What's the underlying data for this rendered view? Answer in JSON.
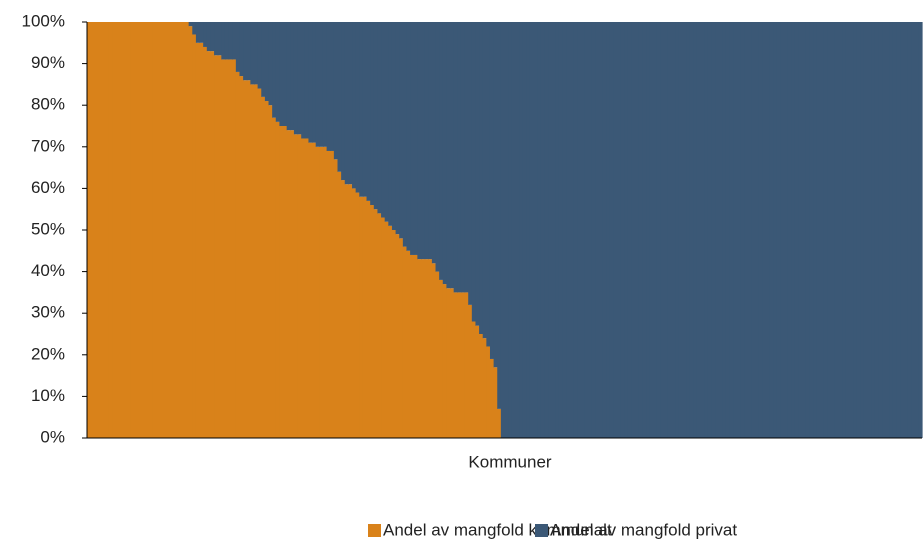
{
  "chart_data": {
    "type": "stacked_bar",
    "xlabel": "Kommuner",
    "categories": [
      null,
      null,
      null,
      null,
      null,
      null,
      null,
      null,
      null,
      null,
      null,
      null,
      null,
      null,
      null,
      null,
      null,
      null,
      null,
      null,
      null,
      null,
      null,
      null,
      null,
      null,
      null,
      null,
      null,
      null,
      null,
      null,
      null,
      null,
      null,
      null,
      null,
      null,
      null,
      null,
      null,
      null,
      null,
      null,
      null,
      null,
      null,
      null,
      null,
      null,
      null,
      null,
      null,
      null,
      null,
      null,
      null,
      null,
      null,
      null,
      null,
      null,
      null,
      null,
      null,
      null,
      null,
      null,
      null,
      null,
      null,
      null,
      null,
      null,
      null,
      null,
      null,
      null,
      null,
      null,
      null,
      null,
      null,
      null,
      null,
      null,
      null,
      null,
      null,
      null,
      null,
      null,
      null,
      null,
      null,
      null,
      null,
      null,
      null,
      null,
      null,
      null,
      null,
      null,
      null,
      null,
      null,
      null,
      null,
      null,
      null,
      null,
      null,
      null,
      null,
      null,
      null,
      null,
      null,
      null,
      null,
      null,
      null,
      null,
      null,
      null,
      null,
      null,
      null,
      null,
      null,
      null,
      null,
      null,
      null,
      null,
      null,
      null,
      null,
      null,
      null,
      null,
      null,
      null,
      null,
      null,
      null,
      null,
      null,
      null,
      null,
      null,
      null,
      null,
      null,
      null,
      null,
      null,
      null,
      null,
      null,
      null,
      null,
      null,
      null,
      null,
      null,
      null,
      null,
      null,
      null,
      null,
      null,
      null,
      null,
      null,
      null,
      null,
      null,
      null,
      null,
      null,
      null,
      null,
      null,
      null,
      null,
      null,
      null,
      null,
      null,
      null,
      null,
      null,
      null,
      null,
      null,
      null,
      null,
      null,
      null,
      null,
      null,
      null,
      null,
      null,
      null,
      null,
      null,
      null,
      null,
      null,
      null,
      null,
      null,
      null,
      null,
      null,
      null,
      null,
      null,
      null,
      null,
      null,
      null,
      null,
      null,
      null,
      null,
      null
    ],
    "series": [
      {
        "name": "Andel av mangfold kommunalt",
        "color": "#d9821a",
        "values": [
          100,
          100,
          100,
          100,
          100,
          100,
          100,
          100,
          100,
          100,
          100,
          100,
          100,
          100,
          100,
          100,
          100,
          100,
          100,
          100,
          100,
          100,
          100,
          100,
          100,
          100,
          100,
          100,
          99,
          97,
          95,
          95,
          94,
          93,
          93,
          92,
          92,
          91,
          91,
          91,
          91,
          88,
          87,
          86,
          86,
          85,
          85,
          84,
          82,
          81,
          80,
          77,
          76,
          75,
          75,
          74,
          74,
          73,
          73,
          72,
          72,
          71,
          71,
          70,
          70,
          70,
          69,
          69,
          67,
          64,
          62,
          61,
          61,
          60,
          59,
          58,
          58,
          57,
          56,
          55,
          54,
          53,
          52,
          51,
          50,
          49,
          48,
          46,
          45,
          44,
          44,
          43,
          43,
          43,
          43,
          42,
          40,
          38,
          37,
          36,
          36,
          35,
          35,
          35,
          35,
          32,
          28,
          27,
          25,
          24,
          22,
          19,
          17,
          7,
          0,
          0,
          0,
          0,
          0,
          0,
          0,
          0,
          0,
          0,
          0,
          0,
          0,
          0,
          0,
          0,
          0,
          0,
          0,
          0,
          0,
          0,
          0,
          0,
          0,
          0,
          0,
          0,
          0,
          0,
          0,
          0,
          0,
          0,
          0,
          0,
          0,
          0,
          0,
          0,
          0,
          0,
          0,
          0,
          0,
          0,
          0,
          0,
          0,
          0,
          0,
          0,
          0,
          0,
          0,
          0,
          0,
          0,
          0,
          0,
          0,
          0,
          0,
          0,
          0,
          0,
          0,
          0,
          0,
          0,
          0,
          0,
          0,
          0,
          0,
          0,
          0,
          0,
          0,
          0,
          0,
          0,
          0,
          0,
          0,
          0,
          0,
          0,
          0,
          0,
          0,
          0,
          0,
          0,
          0,
          0,
          0,
          0,
          0,
          0,
          0,
          0,
          0,
          0,
          0,
          0,
          0,
          0,
          0,
          0,
          0,
          0,
          0,
          0,
          0,
          0
        ]
      },
      {
        "name": "Andel av mangfold privat",
        "color": "#3b5876",
        "values": [
          0,
          0,
          0,
          0,
          0,
          0,
          0,
          0,
          0,
          0,
          0,
          0,
          0,
          0,
          0,
          0,
          0,
          0,
          0,
          0,
          0,
          0,
          0,
          0,
          0,
          0,
          0,
          0,
          1,
          3,
          5,
          5,
          6,
          7,
          7,
          8,
          8,
          9,
          9,
          9,
          9,
          12,
          13,
          14,
          14,
          15,
          15,
          16,
          18,
          19,
          20,
          23,
          24,
          25,
          25,
          26,
          26,
          27,
          27,
          28,
          28,
          29,
          29,
          30,
          30,
          30,
          31,
          31,
          33,
          36,
          38,
          39,
          39,
          40,
          41,
          42,
          42,
          43,
          44,
          45,
          46,
          47,
          48,
          49,
          50,
          51,
          52,
          54,
          55,
          56,
          56,
          57,
          57,
          57,
          57,
          58,
          60,
          62,
          63,
          64,
          64,
          65,
          65,
          65,
          65,
          68,
          72,
          73,
          75,
          76,
          78,
          81,
          83,
          93,
          100,
          100,
          100,
          100,
          100,
          100,
          100,
          100,
          100,
          100,
          100,
          100,
          100,
          100,
          100,
          100,
          100,
          100,
          100,
          100,
          100,
          100,
          100,
          100,
          100,
          100,
          100,
          100,
          100,
          100,
          100,
          100,
          100,
          100,
          100,
          100,
          100,
          100,
          100,
          100,
          100,
          100,
          100,
          100,
          100,
          100,
          100,
          100,
          100,
          100,
          100,
          100,
          100,
          100,
          100,
          100,
          100,
          100,
          100,
          100,
          100,
          100,
          100,
          100,
          100,
          100,
          100,
          100,
          100,
          100,
          100,
          100,
          100,
          100,
          100,
          100,
          100,
          100,
          100,
          100,
          100,
          100,
          100,
          100,
          100,
          100,
          100,
          100,
          100,
          100,
          100,
          100,
          100,
          100,
          100,
          100,
          100,
          100,
          100,
          100,
          100,
          100,
          100,
          100,
          100,
          100,
          100,
          100,
          100,
          100,
          100,
          100,
          100,
          100,
          100,
          100
        ]
      }
    ],
    "ylim": [
      0,
      100
    ],
    "yticks": [
      {
        "value": 0,
        "label": "0%"
      },
      {
        "value": 10,
        "label": "10%"
      },
      {
        "value": 20,
        "label": "20%"
      },
      {
        "value": 30,
        "label": "30%"
      },
      {
        "value": 40,
        "label": "40%"
      },
      {
        "value": 50,
        "label": "50%"
      },
      {
        "value": 60,
        "label": "60%"
      },
      {
        "value": 70,
        "label": "70%"
      },
      {
        "value": 80,
        "label": "80%"
      },
      {
        "value": 90,
        "label": "90%"
      },
      {
        "value": 100,
        "label": "100%"
      }
    ],
    "legend": "bottom"
  }
}
